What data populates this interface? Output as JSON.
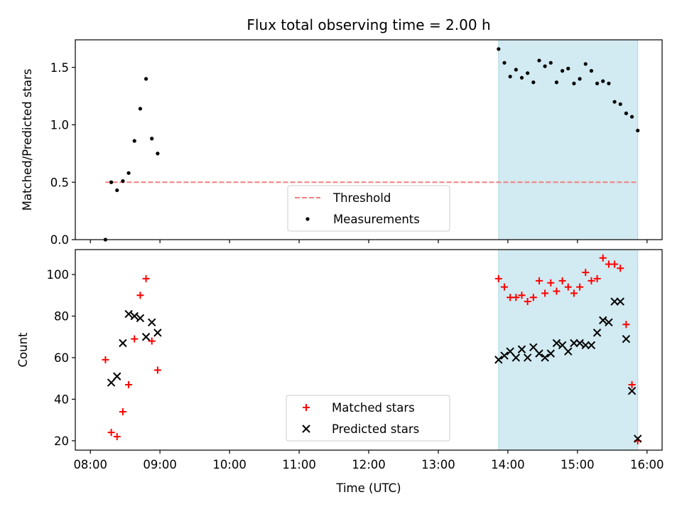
{
  "chart_data": {
    "type": "scatter",
    "title": "Flux total observing time = 2.00 h",
    "xlabel": "Time (UTC)",
    "x_ticks": [
      "08:00",
      "09:00",
      "10:00",
      "11:00",
      "12:00",
      "13:00",
      "14:00",
      "15:00",
      "16:00"
    ],
    "x_range": [
      "07:47",
      "16:13"
    ],
    "shaded_interval": [
      "13:52",
      "15:52"
    ],
    "shaded_color": "#add8e6",
    "panels": [
      {
        "ylabel": "Matched/Predicted stars",
        "ylim": [
          0,
          1.74
        ],
        "y_ticks": [
          "0.0",
          "0.5",
          "1.0",
          "1.5"
        ],
        "legend_position": "bottom-center",
        "series": [
          {
            "name": "Threshold",
            "kind": "dashed-line",
            "color": "#f08080",
            "x": [
              "08:13",
              "15:52"
            ],
            "y": [
              0.5,
              0.5
            ]
          },
          {
            "name": "Measurements",
            "kind": "dot",
            "color": "#000000",
            "x": [
              "08:13",
              "08:18",
              "08:23",
              "08:28",
              "08:33",
              "08:38",
              "08:43",
              "08:48",
              "08:53",
              "08:58",
              "13:52",
              "13:57",
              "14:02",
              "14:07",
              "14:12",
              "14:17",
              "14:22",
              "14:27",
              "14:32",
              "14:37",
              "14:42",
              "14:47",
              "14:52",
              "14:57",
              "15:02",
              "15:07",
              "15:12",
              "15:17",
              "15:22",
              "15:27",
              "15:32",
              "15:37",
              "15:42",
              "15:47",
              "15:52"
            ],
            "y": [
              0.0,
              0.5,
              0.43,
              0.51,
              0.58,
              0.86,
              1.14,
              1.4,
              0.88,
              0.75,
              1.66,
              1.54,
              1.42,
              1.48,
              1.41,
              1.45,
              1.37,
              1.56,
              1.51,
              1.54,
              1.37,
              1.47,
              1.49,
              1.36,
              1.4,
              1.53,
              1.47,
              1.36,
              1.38,
              1.36,
              1.2,
              1.18,
              1.1,
              1.07,
              0.95
            ]
          }
        ]
      },
      {
        "ylabel": "Count",
        "ylim": [
          15.5,
          112
        ],
        "y_ticks": [
          "20",
          "40",
          "60",
          "80",
          "100"
        ],
        "legend_position": "bottom-center",
        "series": [
          {
            "name": "Matched stars",
            "kind": "plus",
            "color": "#ff0000",
            "x": [
              "08:13",
              "08:18",
              "08:23",
              "08:28",
              "08:33",
              "08:38",
              "08:43",
              "08:48",
              "08:53",
              "08:58",
              "13:52",
              "13:57",
              "14:02",
              "14:07",
              "14:12",
              "14:17",
              "14:22",
              "14:27",
              "14:32",
              "14:37",
              "14:42",
              "14:47",
              "14:52",
              "14:57",
              "15:02",
              "15:07",
              "15:12",
              "15:17",
              "15:22",
              "15:27",
              "15:32",
              "15:37",
              "15:42",
              "15:47",
              "15:52"
            ],
            "y": [
              59,
              24,
              22,
              34,
              47,
              69,
              90,
              98,
              68,
              54,
              98,
              94,
              89,
              89,
              90,
              87,
              89,
              97,
              91,
              96,
              92,
              97,
              94,
              91,
              94,
              101,
              97,
              98,
              108,
              105,
              105,
              103,
              76,
              47,
              20
            ]
          },
          {
            "name": "Predicted stars",
            "kind": "x",
            "color": "#000000",
            "x": [
              "08:18",
              "08:23",
              "08:28",
              "08:33",
              "08:38",
              "08:43",
              "08:48",
              "08:53",
              "08:58",
              "13:52",
              "13:57",
              "14:02",
              "14:07",
              "14:12",
              "14:17",
              "14:22",
              "14:27",
              "14:32",
              "14:37",
              "14:42",
              "14:47",
              "14:52",
              "14:57",
              "15:02",
              "15:07",
              "15:12",
              "15:17",
              "15:22",
              "15:27",
              "15:32",
              "15:37",
              "15:42",
              "15:47",
              "15:52"
            ],
            "y": [
              48,
              51,
              67,
              81,
              80,
              79,
              70,
              77,
              72,
              59,
              61,
              63,
              60,
              64,
              60,
              65,
              62,
              60,
              62,
              67,
              66,
              63,
              67,
              67,
              66,
              66,
              72,
              78,
              77,
              87,
              87,
              69,
              44,
              21
            ]
          }
        ]
      }
    ]
  }
}
